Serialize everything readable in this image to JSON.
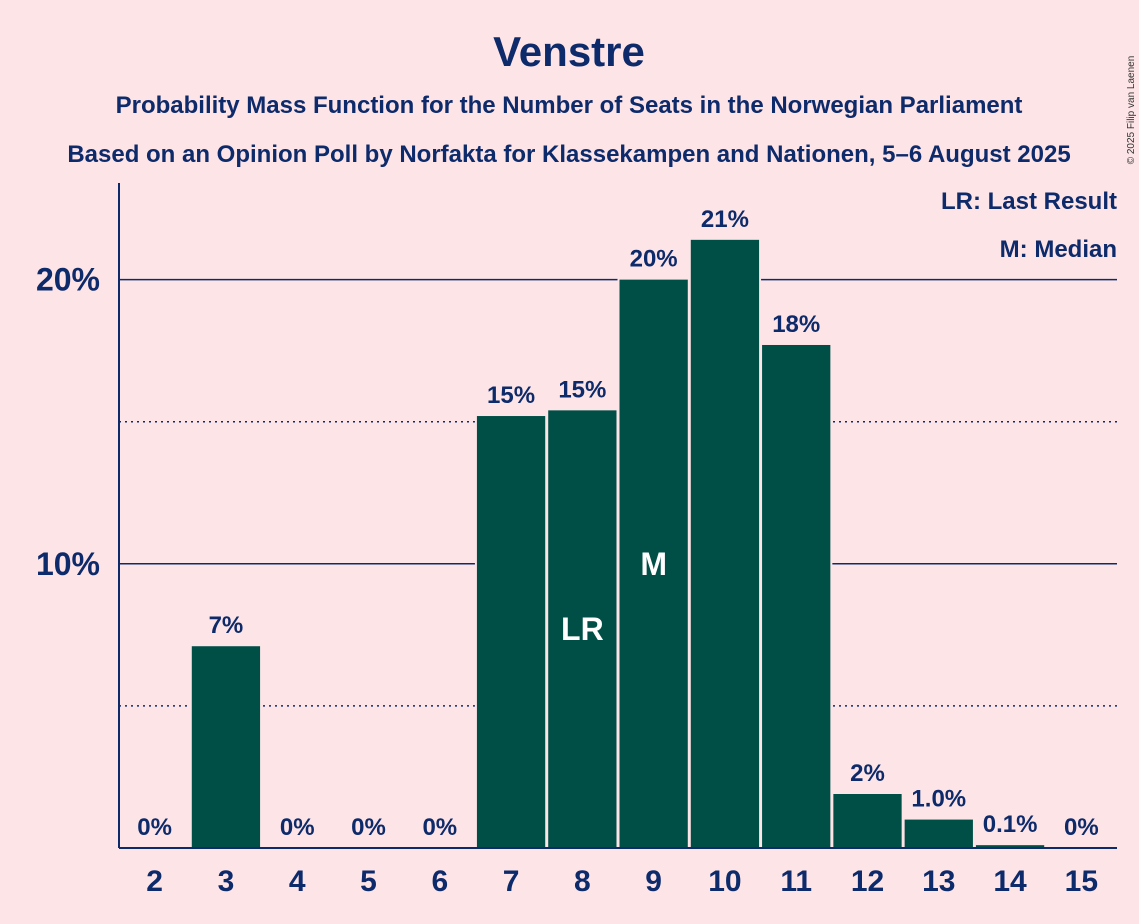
{
  "chart_data": {
    "type": "bar",
    "title": "Venstre",
    "subtitle1": "Probability Mass Function for the Number of Seats in the Norwegian Parliament",
    "subtitle2": "Based on an Opinion Poll by Norfakta for Klassekampen and Nationen, 5–6 August 2025",
    "copyright": "© 2025 Filip van Laenen",
    "legend": [
      "LR: Last Result",
      "M: Median"
    ],
    "categories": [
      "2",
      "3",
      "4",
      "5",
      "6",
      "7",
      "8",
      "9",
      "10",
      "11",
      "12",
      "13",
      "14",
      "15"
    ],
    "values": [
      0,
      7.1,
      0,
      0,
      0,
      15.2,
      15.4,
      20.0,
      21.4,
      17.7,
      1.9,
      1.0,
      0.1,
      0
    ],
    "value_labels": [
      "0%",
      "7%",
      "0%",
      "0%",
      "0%",
      "15%",
      "15%",
      "20%",
      "21%",
      "18%",
      "2%",
      "1.0%",
      "0.1%",
      "0%"
    ],
    "bar_markers": {
      "8": "LR",
      "9": "M"
    },
    "yticks": [
      {
        "value": 10,
        "label": "10%"
      },
      {
        "value": 20,
        "label": "20%"
      }
    ],
    "minor_gridlines": [
      5,
      15
    ],
    "ylim": [
      0,
      23.4
    ],
    "xlabel": "",
    "ylabel": "",
    "legend_position": "top-right",
    "colors": {
      "bar": "#004f47",
      "text": "#0d2a6b",
      "background": "#fde4e6"
    }
  }
}
